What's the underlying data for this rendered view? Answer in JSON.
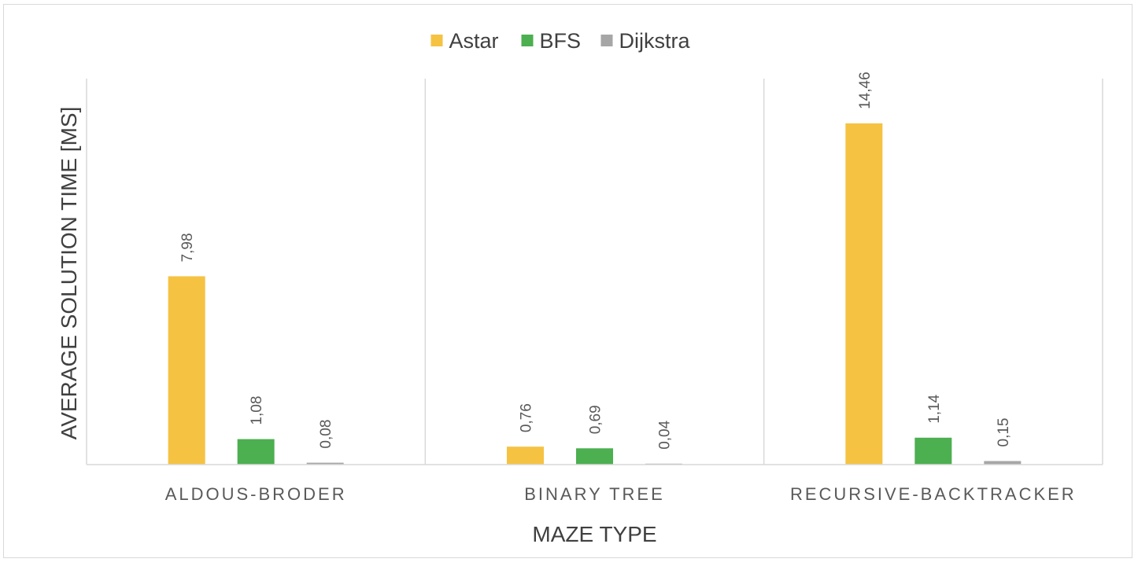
{
  "chart_data": {
    "type": "bar",
    "title": "",
    "xlabel": "MAZE TYPE",
    "ylabel": "AVERAGE SOLUTION TIME [MS]",
    "categories": [
      "ALDOUS-BRODER",
      "BINARY TREE",
      "RECURSIVE-BACKTRACKER"
    ],
    "series": [
      {
        "name": "Astar",
        "color": "#f5c242",
        "values": [
          7.98,
          0.76,
          14.46
        ],
        "labels": [
          "7,98",
          "0,76",
          "14,46"
        ]
      },
      {
        "name": "BFS",
        "color": "#4caf50",
        "values": [
          1.08,
          0.69,
          1.14
        ],
        "labels": [
          "1,08",
          "0,69",
          "1,14"
        ]
      },
      {
        "name": "Dijkstra",
        "color": "#a6a6a6",
        "values": [
          0.08,
          0.04,
          0.15
        ],
        "labels": [
          "0,08",
          "0,04",
          "0,15"
        ]
      }
    ],
    "ylim": [
      0,
      16
    ],
    "grid": false,
    "legend": "top-center"
  }
}
